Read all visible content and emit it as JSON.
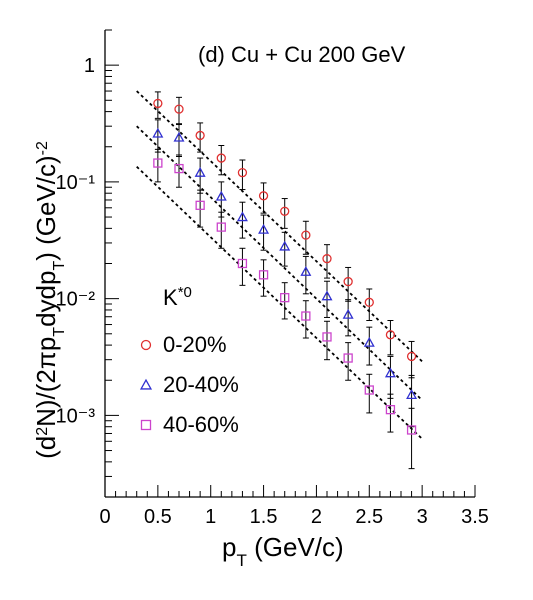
{
  "chart_data": {
    "type": "scatter",
    "title": "(d) Cu + Cu 200 GeV",
    "legend_header": "K*0",
    "legend_placement": "left-middle",
    "xlabel": "p_T (GeV/c)",
    "ylabel": "(d²N)/(2πp_T dydp_T) (GeV/c)⁻²",
    "xlim": [
      0,
      3.5
    ],
    "ylim": [
      0.0002,
      2
    ],
    "y_scale": "log",
    "grid": false,
    "x_ticks": [
      "0",
      "0.5",
      "1",
      "1.5",
      "2",
      "2.5",
      "3",
      "3.5"
    ],
    "y_ticks": [
      {
        "value": 1,
        "label": "1"
      },
      {
        "value": 0.1,
        "label": "10⁻¹"
      },
      {
        "value": 0.01,
        "label": "10⁻²"
      },
      {
        "value": 0.001,
        "label": "10⁻³"
      }
    ],
    "series": [
      {
        "name": "0-20%",
        "marker": "circle",
        "color": "#e03030",
        "x": [
          0.5,
          0.7,
          0.9,
          1.1,
          1.3,
          1.5,
          1.7,
          1.9,
          2.1,
          2.3,
          2.5,
          2.7,
          2.9
        ],
        "y": [
          0.47,
          0.42,
          0.25,
          0.16,
          0.12,
          0.076,
          0.056,
          0.035,
          0.022,
          0.014,
          0.0093,
          0.0049,
          0.0032
        ],
        "err": [
          0.12,
          0.11,
          0.07,
          0.045,
          0.034,
          0.022,
          0.016,
          0.011,
          0.007,
          0.0045,
          0.0028,
          0.0016,
          0.0011
        ]
      },
      {
        "name": "20-40%",
        "marker": "triangle",
        "color": "#3030d0",
        "x": [
          0.5,
          0.7,
          0.9,
          1.1,
          1.3,
          1.5,
          1.7,
          1.9,
          2.1,
          2.3,
          2.5,
          2.7,
          2.9
        ],
        "y": [
          0.26,
          0.24,
          0.12,
          0.075,
          0.05,
          0.039,
          0.028,
          0.017,
          0.0105,
          0.0073,
          0.0042,
          0.0023,
          0.0015
        ],
        "err": [
          0.08,
          0.075,
          0.04,
          0.025,
          0.017,
          0.013,
          0.009,
          0.006,
          0.0036,
          0.0025,
          0.0015,
          0.0009,
          0.0007
        ]
      },
      {
        "name": "40-60%",
        "marker": "square",
        "color": "#cc44cc",
        "x": [
          0.5,
          0.7,
          0.9,
          1.1,
          1.3,
          1.5,
          1.7,
          1.9,
          2.1,
          2.3,
          2.5,
          2.7,
          2.9
        ],
        "y": [
          0.145,
          0.13,
          0.063,
          0.041,
          0.02,
          0.016,
          0.0102,
          0.0071,
          0.0047,
          0.0031,
          0.00165,
          0.00112,
          0.00075
        ],
        "err": [
          0.045,
          0.04,
          0.022,
          0.014,
          0.007,
          0.0055,
          0.0035,
          0.0025,
          0.0017,
          0.0011,
          0.0006,
          0.0004,
          0.0004
        ]
      }
    ],
    "fits": [
      {
        "x": [
          0.3,
          3.0
        ],
        "y": [
          0.6,
          0.0029
        ]
      },
      {
        "x": [
          0.3,
          3.0
        ],
        "y": [
          0.3,
          0.00135
        ]
      },
      {
        "x": [
          0.3,
          3.0
        ],
        "y": [
          0.135,
          0.00063
        ]
      }
    ]
  }
}
